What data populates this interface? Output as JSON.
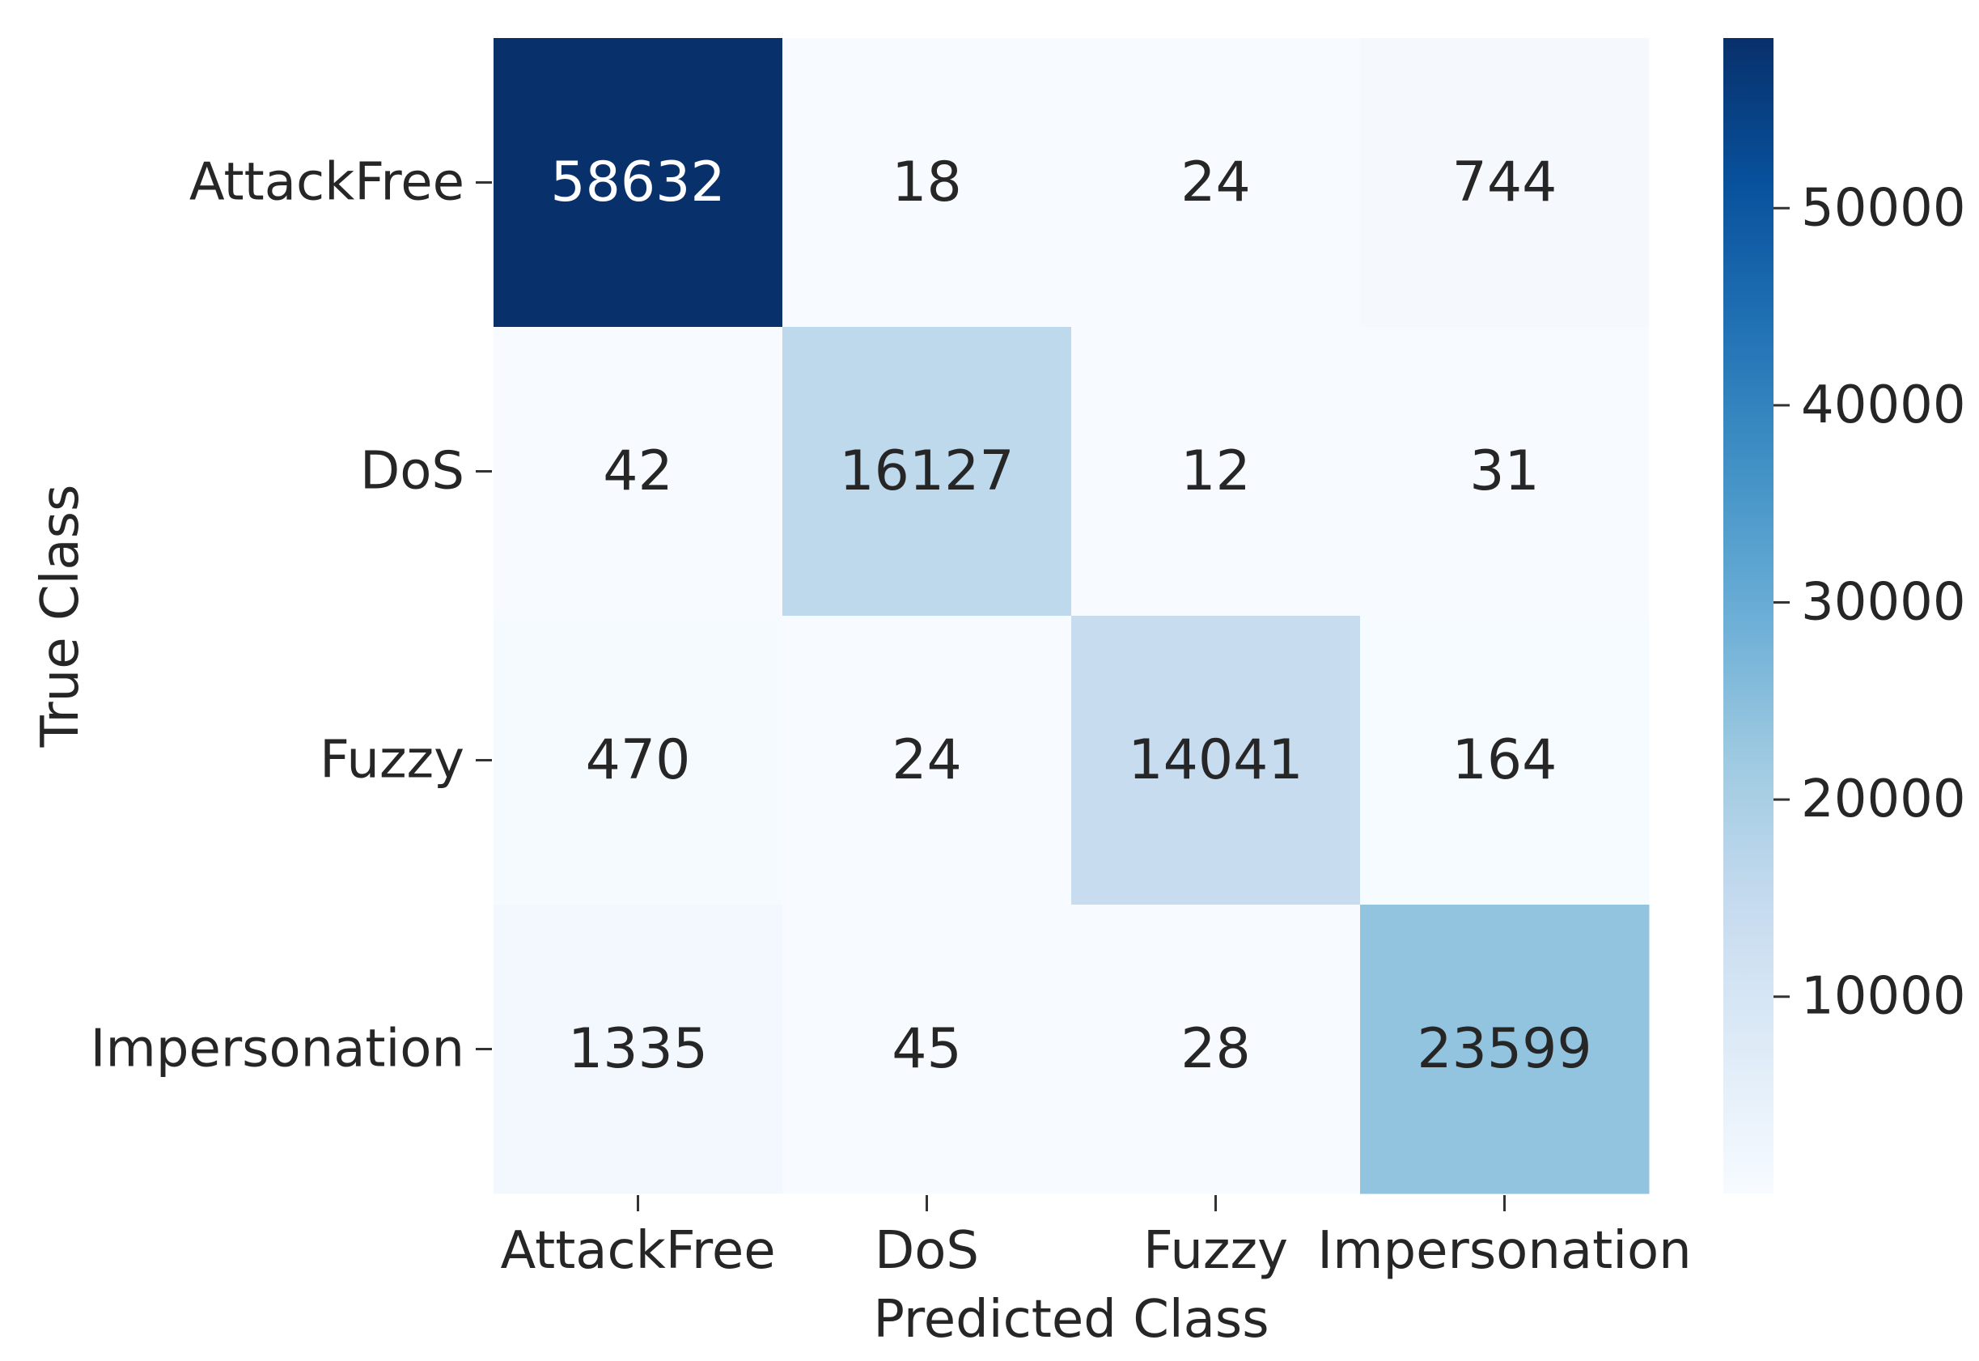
{
  "chart_data": {
    "type": "heatmap",
    "title": "",
    "xlabel": "Predicted Class",
    "ylabel": "True Class",
    "x_categories": [
      "AttackFree",
      "DoS",
      "Fuzzy",
      "Impersonation"
    ],
    "y_categories": [
      "AttackFree",
      "DoS",
      "Fuzzy",
      "Impersonation"
    ],
    "values": [
      [
        58632,
        18,
        24,
        744
      ],
      [
        42,
        16127,
        12,
        31
      ],
      [
        470,
        24,
        14041,
        164
      ],
      [
        1335,
        45,
        28,
        23599
      ]
    ],
    "value_labels": [
      [
        "58632",
        "18",
        "24",
        "744"
      ],
      [
        "42",
        "16127",
        "12",
        "31"
      ],
      [
        "470",
        "24",
        "14041",
        "164"
      ],
      [
        "1335",
        "45",
        "28",
        "23599"
      ]
    ],
    "colorbar": {
      "colormap": "Blues",
      "range": [
        12,
        58632
      ],
      "ticks": [
        10000,
        20000,
        30000,
        40000,
        50000
      ],
      "tick_labels": [
        "10000",
        "20000",
        "30000",
        "40000",
        "50000"
      ]
    },
    "colors": {
      "low": "#f7fbff",
      "high": "#08306b",
      "text_dark": "#262626",
      "text_light": "#ffffff"
    }
  }
}
